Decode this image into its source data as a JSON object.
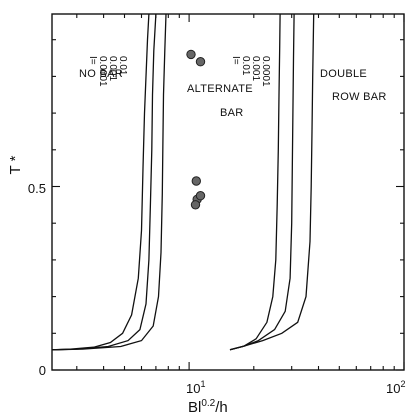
{
  "chart_data": {
    "type": "line",
    "xlabel_base": "Bl",
    "xlabel_sup": "0.2",
    "xlabel_tail": "/h",
    "ylabel": "T *",
    "x_scale": "log",
    "xlim": [
      2.3,
      100
    ],
    "ylim": [
      0,
      0.97
    ],
    "x_ticks": [
      {
        "value": 10,
        "base": "10",
        "exp": "1"
      },
      {
        "value": 100,
        "base": "10",
        "exp": "2"
      }
    ],
    "y_ticks": [
      {
        "value": 0,
        "label": "0"
      },
      {
        "value": 0.5,
        "label": "0.5"
      }
    ],
    "grid": false,
    "region_labels": [
      "NO BAR",
      "ALTERNATE",
      "BAR",
      "DOUBLE",
      "ROW BAR"
    ],
    "curve_group_left": {
      "prefix": "I=",
      "values": [
        "0.0001",
        "0.001",
        "0.01"
      ]
    },
    "curve_group_right": {
      "prefix": "I=",
      "values": [
        "0.01",
        "0.001",
        "0.0001"
      ]
    },
    "series": [
      {
        "group": "left",
        "x": [
          2.3,
          2.8,
          3.6,
          4.3,
          4.9,
          5.4,
          5.8,
          6.0,
          6.1,
          6.2,
          6.3,
          6.4,
          6.5
        ],
        "y": [
          0.055,
          0.057,
          0.062,
          0.075,
          0.1,
          0.15,
          0.25,
          0.38,
          0.55,
          0.7,
          0.8,
          0.9,
          0.97
        ]
      },
      {
        "group": "left",
        "x": [
          2.3,
          3.0,
          4.2,
          5.2,
          5.9,
          6.3,
          6.5,
          6.6,
          6.7,
          6.75,
          6.85,
          7.0
        ],
        "y": [
          0.055,
          0.057,
          0.064,
          0.08,
          0.11,
          0.18,
          0.3,
          0.45,
          0.6,
          0.75,
          0.87,
          0.97
        ]
      },
      {
        "group": "left",
        "x": [
          2.3,
          3.2,
          4.8,
          6.0,
          6.8,
          7.2,
          7.4,
          7.5,
          7.55,
          7.6,
          7.7,
          7.8
        ],
        "y": [
          0.055,
          0.057,
          0.064,
          0.08,
          0.12,
          0.2,
          0.32,
          0.48,
          0.62,
          0.75,
          0.87,
          0.97
        ]
      },
      {
        "group": "right",
        "x": [
          15.5,
          18,
          20.5,
          23,
          24.5,
          25.3,
          25.7,
          26.0,
          26.2,
          26.4,
          26.5
        ],
        "y": [
          0.055,
          0.065,
          0.085,
          0.13,
          0.2,
          0.3,
          0.45,
          0.6,
          0.75,
          0.88,
          0.97
        ]
      },
      {
        "group": "right",
        "x": [
          15.5,
          18,
          21,
          25,
          28,
          29.5,
          30.0,
          30.2,
          30.4,
          30.6,
          30.8
        ],
        "y": [
          0.055,
          0.065,
          0.08,
          0.11,
          0.16,
          0.25,
          0.4,
          0.55,
          0.7,
          0.85,
          0.97
        ]
      },
      {
        "group": "right",
        "x": [
          15.5,
          18,
          22,
          27,
          32,
          35,
          36.5,
          37.0,
          37.3,
          37.6,
          38.0
        ],
        "y": [
          0.055,
          0.065,
          0.08,
          0.1,
          0.13,
          0.2,
          0.35,
          0.5,
          0.65,
          0.8,
          0.97
        ]
      }
    ],
    "points": [
      {
        "x": 10.2,
        "y": 0.86
      },
      {
        "x": 11.3,
        "y": 0.84
      },
      {
        "x": 10.8,
        "y": 0.515
      },
      {
        "x": 10.9,
        "y": 0.465
      },
      {
        "x": 11.3,
        "y": 0.475
      },
      {
        "x": 10.7,
        "y": 0.45
      }
    ]
  }
}
